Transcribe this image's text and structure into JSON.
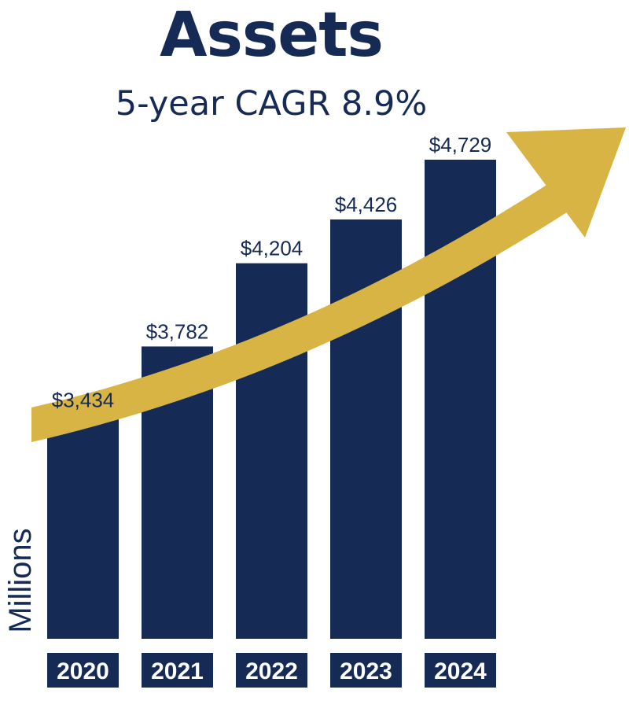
{
  "colors": {
    "bar": "#152a55",
    "arrow": "#d8b444",
    "text": "#152a55",
    "year_label_text": "#ffffff"
  },
  "chart_data": {
    "type": "bar",
    "title": "Assets",
    "subtitle": "5-year CAGR 8.9%",
    "ylabel": "Millions",
    "xlabel": "",
    "categories": [
      "2020",
      "2021",
      "2022",
      "2023",
      "2024"
    ],
    "values": [
      3434,
      3782,
      4204,
      4426,
      4729
    ],
    "value_labels": [
      "$3,434",
      "$3,782",
      "$4,204",
      "$4,426",
      "$4,729"
    ],
    "ylim": [
      2300,
      4900
    ],
    "grid": false,
    "legend": "none",
    "annotations": [
      "upward-trend-arrow"
    ]
  }
}
